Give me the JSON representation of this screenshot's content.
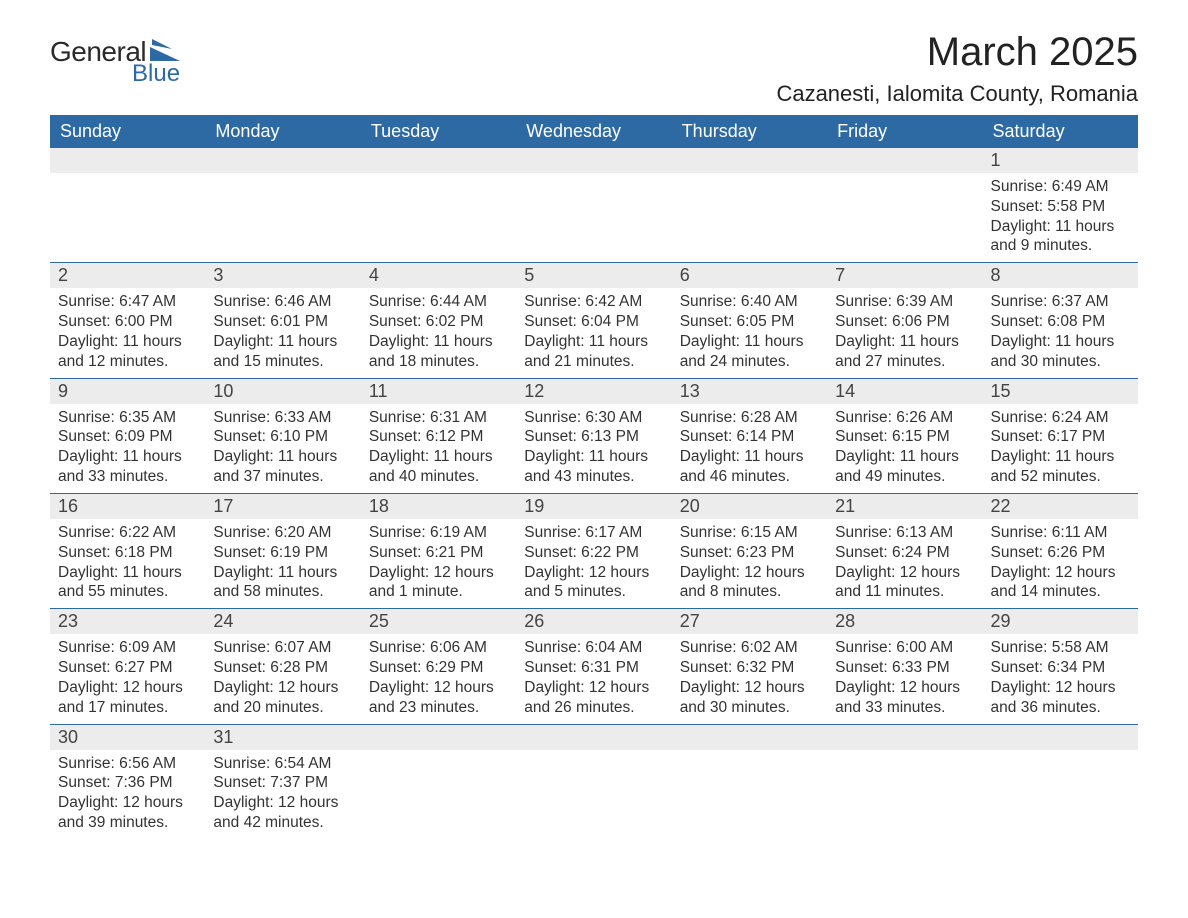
{
  "logo": {
    "text1": "General",
    "text2": "Blue",
    "shape_color": "#2d6aa3"
  },
  "title": "March 2025",
  "location": "Cazanesti, Ialomita County, Romania",
  "colors": {
    "header_bg": "#2d6aa3",
    "header_fg": "#ffffff",
    "dayrow_bg": "#ececec",
    "rule": "#2d6aa3",
    "text": "#333333",
    "page_bg": "#ffffff"
  },
  "fonts": {
    "title_pt": 40,
    "location_pt": 22,
    "th_pt": 18,
    "daynum_pt": 18,
    "body_pt": 15.5
  },
  "weekdays": [
    "Sunday",
    "Monday",
    "Tuesday",
    "Wednesday",
    "Thursday",
    "Friday",
    "Saturday"
  ],
  "labels": {
    "sunrise": "Sunrise:",
    "sunset": "Sunset:",
    "daylight": "Daylight:"
  },
  "weeks": [
    [
      null,
      null,
      null,
      null,
      null,
      null,
      {
        "n": "1",
        "sr": "6:49 AM",
        "ss": "5:58 PM",
        "dl": "11 hours and 9 minutes."
      }
    ],
    [
      {
        "n": "2",
        "sr": "6:47 AM",
        "ss": "6:00 PM",
        "dl": "11 hours and 12 minutes."
      },
      {
        "n": "3",
        "sr": "6:46 AM",
        "ss": "6:01 PM",
        "dl": "11 hours and 15 minutes."
      },
      {
        "n": "4",
        "sr": "6:44 AM",
        "ss": "6:02 PM",
        "dl": "11 hours and 18 minutes."
      },
      {
        "n": "5",
        "sr": "6:42 AM",
        "ss": "6:04 PM",
        "dl": "11 hours and 21 minutes."
      },
      {
        "n": "6",
        "sr": "6:40 AM",
        "ss": "6:05 PM",
        "dl": "11 hours and 24 minutes."
      },
      {
        "n": "7",
        "sr": "6:39 AM",
        "ss": "6:06 PM",
        "dl": "11 hours and 27 minutes."
      },
      {
        "n": "8",
        "sr": "6:37 AM",
        "ss": "6:08 PM",
        "dl": "11 hours and 30 minutes."
      }
    ],
    [
      {
        "n": "9",
        "sr": "6:35 AM",
        "ss": "6:09 PM",
        "dl": "11 hours and 33 minutes."
      },
      {
        "n": "10",
        "sr": "6:33 AM",
        "ss": "6:10 PM",
        "dl": "11 hours and 37 minutes."
      },
      {
        "n": "11",
        "sr": "6:31 AM",
        "ss": "6:12 PM",
        "dl": "11 hours and 40 minutes."
      },
      {
        "n": "12",
        "sr": "6:30 AM",
        "ss": "6:13 PM",
        "dl": "11 hours and 43 minutes."
      },
      {
        "n": "13",
        "sr": "6:28 AM",
        "ss": "6:14 PM",
        "dl": "11 hours and 46 minutes."
      },
      {
        "n": "14",
        "sr": "6:26 AM",
        "ss": "6:15 PM",
        "dl": "11 hours and 49 minutes."
      },
      {
        "n": "15",
        "sr": "6:24 AM",
        "ss": "6:17 PM",
        "dl": "11 hours and 52 minutes."
      }
    ],
    [
      {
        "n": "16",
        "sr": "6:22 AM",
        "ss": "6:18 PM",
        "dl": "11 hours and 55 minutes."
      },
      {
        "n": "17",
        "sr": "6:20 AM",
        "ss": "6:19 PM",
        "dl": "11 hours and 58 minutes."
      },
      {
        "n": "18",
        "sr": "6:19 AM",
        "ss": "6:21 PM",
        "dl": "12 hours and 1 minute."
      },
      {
        "n": "19",
        "sr": "6:17 AM",
        "ss": "6:22 PM",
        "dl": "12 hours and 5 minutes."
      },
      {
        "n": "20",
        "sr": "6:15 AM",
        "ss": "6:23 PM",
        "dl": "12 hours and 8 minutes."
      },
      {
        "n": "21",
        "sr": "6:13 AM",
        "ss": "6:24 PM",
        "dl": "12 hours and 11 minutes."
      },
      {
        "n": "22",
        "sr": "6:11 AM",
        "ss": "6:26 PM",
        "dl": "12 hours and 14 minutes."
      }
    ],
    [
      {
        "n": "23",
        "sr": "6:09 AM",
        "ss": "6:27 PM",
        "dl": "12 hours and 17 minutes."
      },
      {
        "n": "24",
        "sr": "6:07 AM",
        "ss": "6:28 PM",
        "dl": "12 hours and 20 minutes."
      },
      {
        "n": "25",
        "sr": "6:06 AM",
        "ss": "6:29 PM",
        "dl": "12 hours and 23 minutes."
      },
      {
        "n": "26",
        "sr": "6:04 AM",
        "ss": "6:31 PM",
        "dl": "12 hours and 26 minutes."
      },
      {
        "n": "27",
        "sr": "6:02 AM",
        "ss": "6:32 PM",
        "dl": "12 hours and 30 minutes."
      },
      {
        "n": "28",
        "sr": "6:00 AM",
        "ss": "6:33 PM",
        "dl": "12 hours and 33 minutes."
      },
      {
        "n": "29",
        "sr": "5:58 AM",
        "ss": "6:34 PM",
        "dl": "12 hours and 36 minutes."
      }
    ],
    [
      {
        "n": "30",
        "sr": "6:56 AM",
        "ss": "7:36 PM",
        "dl": "12 hours and 39 minutes."
      },
      {
        "n": "31",
        "sr": "6:54 AM",
        "ss": "7:37 PM",
        "dl": "12 hours and 42 minutes."
      },
      null,
      null,
      null,
      null,
      null
    ]
  ]
}
